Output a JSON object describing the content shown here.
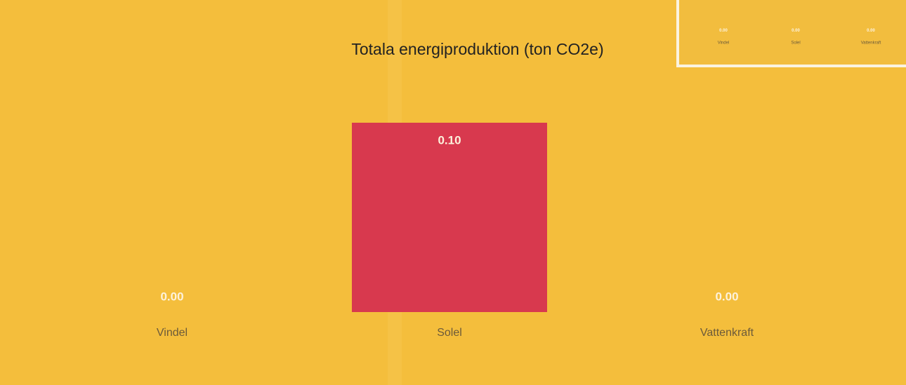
{
  "chart_data": [
    {
      "type": "bar",
      "title": "Totala energiproduktion (ton CO2e)",
      "categories": [
        "Vindel",
        "Solel",
        "Vattenkraft"
      ],
      "values": [
        0,
        0.1,
        0
      ],
      "value_labels": [
        "0.00",
        "0.10",
        "0.00"
      ],
      "color": "#d8394e"
    },
    {
      "type": "bar",
      "categories": [
        "Vindel",
        "Solel",
        "Vattenkraft"
      ],
      "values": [
        0,
        0,
        0
      ],
      "value_labels": [
        "0.00",
        "0.00",
        "0.00"
      ],
      "color": "#d8394e"
    }
  ]
}
